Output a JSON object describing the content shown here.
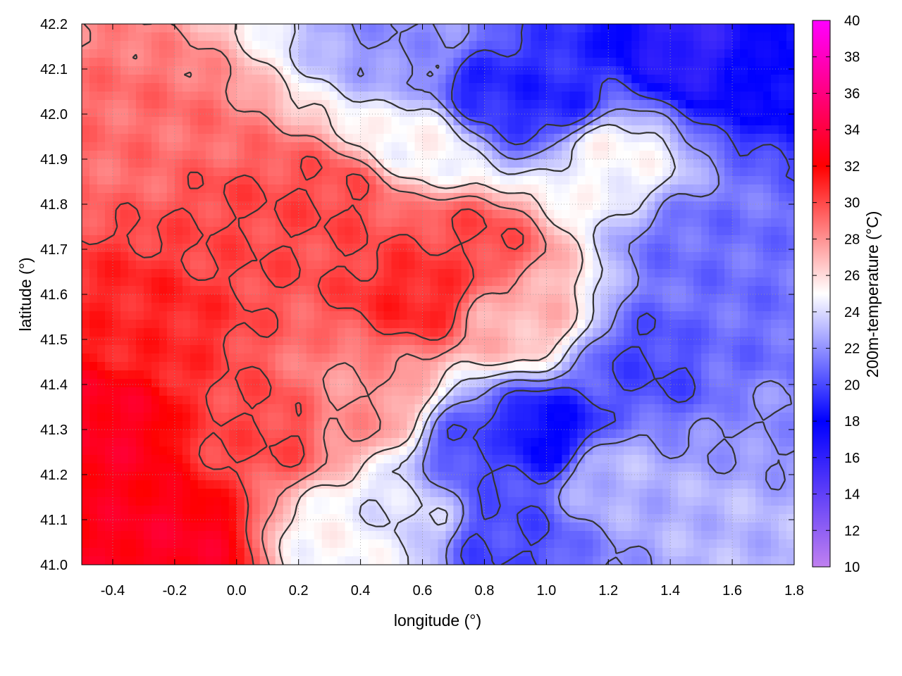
{
  "chart_data": {
    "type": "heatmap",
    "title": "",
    "xlabel": "longitude (°)",
    "ylabel": "latitude (°)",
    "colorbar_label": "200m-temperature (°C)",
    "xlim": [
      -0.5,
      1.8
    ],
    "ylim": [
      41.0,
      42.2
    ],
    "x_ticks": [
      -0.4,
      -0.2,
      0.0,
      0.2,
      0.4,
      0.6,
      0.8,
      1.0,
      1.2,
      1.4,
      1.6,
      1.8
    ],
    "x_tick_labels": [
      "-0.4",
      "-0.2",
      "0.0",
      "0.2",
      "0.4",
      "0.6",
      "0.8",
      "1.0",
      "1.2",
      "1.4",
      "1.6",
      "1.8"
    ],
    "y_ticks": [
      41.0,
      41.1,
      41.2,
      41.3,
      41.4,
      41.5,
      41.6,
      41.7,
      41.8,
      41.9,
      42.0,
      42.1,
      42.2
    ],
    "y_tick_labels": [
      "41.0",
      "41.1",
      "41.2",
      "41.3",
      "41.4",
      "41.5",
      "41.6",
      "41.7",
      "41.8",
      "41.9",
      "42.0",
      "42.1",
      "42.2"
    ],
    "colorbar_range": [
      10,
      40
    ],
    "colorbar_ticks": [
      10,
      12,
      14,
      16,
      18,
      20,
      22,
      24,
      26,
      28,
      30,
      32,
      34,
      36,
      38,
      40
    ],
    "colorbar_tick_labels": [
      "10",
      "12",
      "14",
      "16",
      "18",
      "20",
      "22",
      "24",
      "26",
      "28",
      "30",
      "32",
      "34",
      "36",
      "38",
      "40"
    ],
    "colormap_stops": [
      {
        "value": 10,
        "color": "#c080f0"
      },
      {
        "value": 18,
        "color": "#0000ff"
      },
      {
        "value": 25,
        "color": "#ffffff"
      },
      {
        "value": 32,
        "color": "#ff0000"
      },
      {
        "value": 40,
        "color": "#ff00ff"
      }
    ],
    "grid": true,
    "contour_color": "#333333",
    "field_samples": [
      {
        "x": -0.45,
        "y": 41.3,
        "temp": 33
      },
      {
        "x": -0.2,
        "y": 41.05,
        "temp": 33
      },
      {
        "x": -0.3,
        "y": 41.55,
        "temp": 31
      },
      {
        "x": 0.0,
        "y": 41.75,
        "temp": 30
      },
      {
        "x": 0.3,
        "y": 41.8,
        "temp": 30
      },
      {
        "x": 0.6,
        "y": 41.6,
        "temp": 31
      },
      {
        "x": 0.75,
        "y": 41.7,
        "temp": 30
      },
      {
        "x": -0.3,
        "y": 41.95,
        "temp": 29
      },
      {
        "x": 0.1,
        "y": 41.3,
        "temp": 30
      },
      {
        "x": 0.4,
        "y": 41.35,
        "temp": 28
      },
      {
        "x": 0.9,
        "y": 41.55,
        "temp": 27
      },
      {
        "x": 0.6,
        "y": 41.95,
        "temp": 25
      },
      {
        "x": 0.6,
        "y": 42.15,
        "temp": 22
      },
      {
        "x": 0.8,
        "y": 42.05,
        "temp": 19
      },
      {
        "x": 1.0,
        "y": 42.03,
        "temp": 19
      },
      {
        "x": 1.5,
        "y": 42.15,
        "temp": 16
      },
      {
        "x": 1.7,
        "y": 42.12,
        "temp": 18
      },
      {
        "x": 1.2,
        "y": 41.9,
        "temp": 25
      },
      {
        "x": 1.5,
        "y": 41.7,
        "temp": 21
      },
      {
        "x": 1.35,
        "y": 41.45,
        "temp": 20
      },
      {
        "x": 1.6,
        "y": 41.5,
        "temp": 21
      },
      {
        "x": 1.0,
        "y": 41.28,
        "temp": 18
      },
      {
        "x": 0.8,
        "y": 41.25,
        "temp": 20
      },
      {
        "x": 0.85,
        "y": 41.05,
        "temp": 20
      },
      {
        "x": 1.2,
        "y": 41.2,
        "temp": 23
      },
      {
        "x": 1.6,
        "y": 41.1,
        "temp": 23
      },
      {
        "x": 1.75,
        "y": 41.3,
        "temp": 22
      },
      {
        "x": 0.55,
        "y": 41.1,
        "temp": 24
      },
      {
        "x": 0.35,
        "y": 41.05,
        "temp": 25
      }
    ]
  }
}
